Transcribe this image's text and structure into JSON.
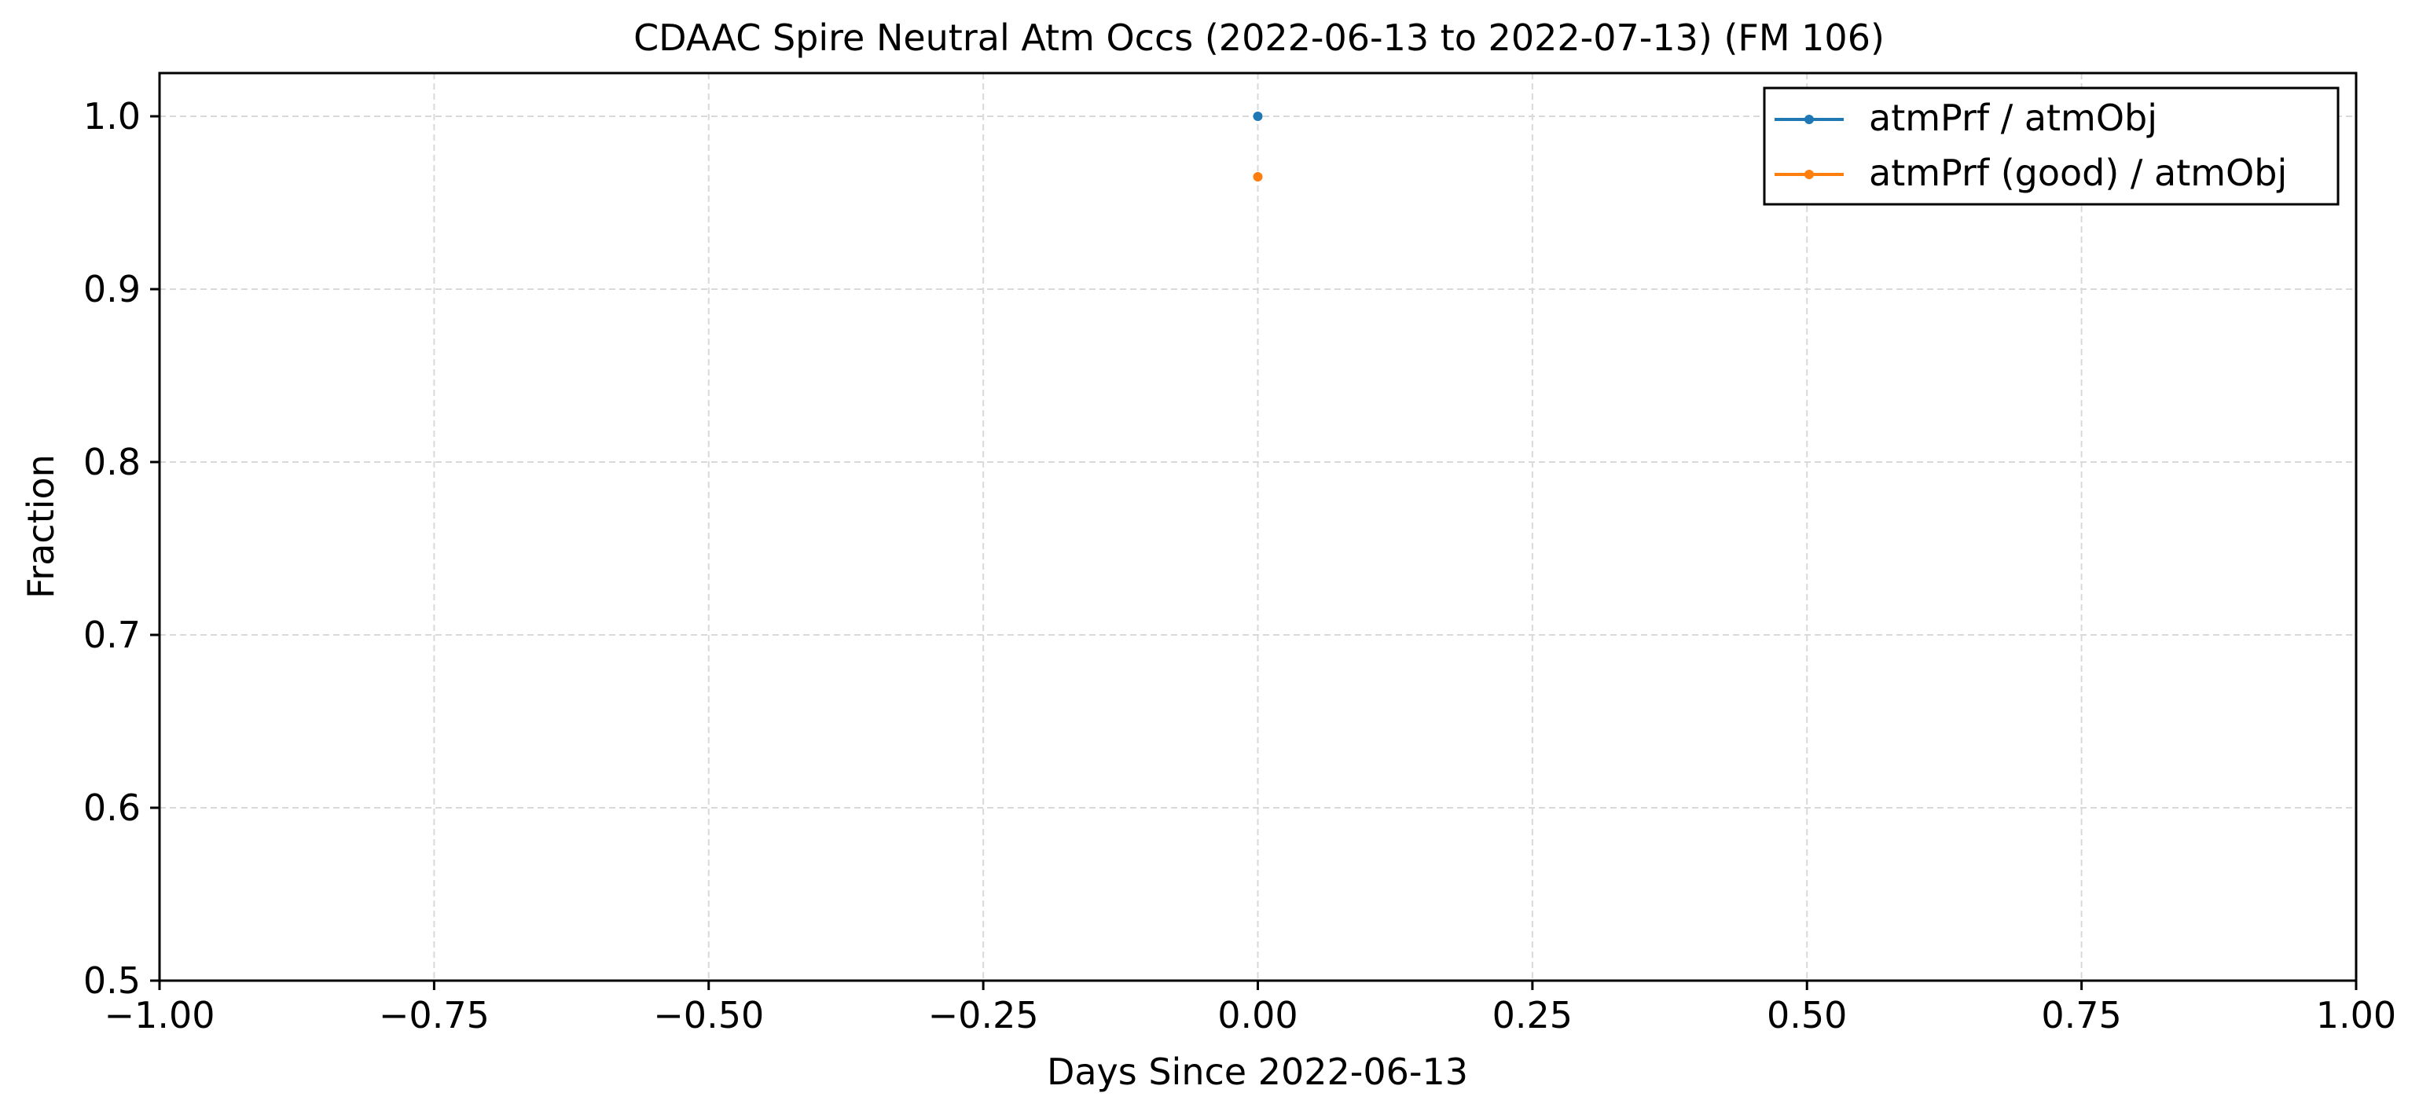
{
  "chart_data": {
    "type": "line",
    "title": "CDAAC Spire Neutral Atm Occs (2022-06-13 to 2022-07-13) (FM 106)",
    "xlabel": "Days Since 2022-06-13",
    "ylabel": "Fraction",
    "xlim": [
      -1.0,
      1.0
    ],
    "ylim": [
      0.5,
      1.025
    ],
    "xticks": [
      -1.0,
      -0.75,
      -0.5,
      -0.25,
      0.0,
      0.25,
      0.5,
      0.75,
      1.0
    ],
    "xtick_labels": [
      "−1.00",
      "−0.75",
      "−0.50",
      "−0.25",
      "0.00",
      "0.25",
      "0.50",
      "0.75",
      "1.00"
    ],
    "yticks": [
      0.5,
      0.6,
      0.7,
      0.8,
      0.9,
      1.0
    ],
    "ytick_labels": [
      "0.5",
      "0.6",
      "0.7",
      "0.8",
      "0.9",
      "1.0"
    ],
    "grid": true,
    "legend_position": "top-right",
    "series": [
      {
        "name": "atmPrf / atmObj",
        "color": "#1f77b4",
        "x": [
          0.0
        ],
        "y": [
          1.0
        ]
      },
      {
        "name": "atmPrf (good) / atmObj",
        "color": "#ff7f0e",
        "x": [
          0.0
        ],
        "y": [
          0.965
        ]
      }
    ]
  }
}
